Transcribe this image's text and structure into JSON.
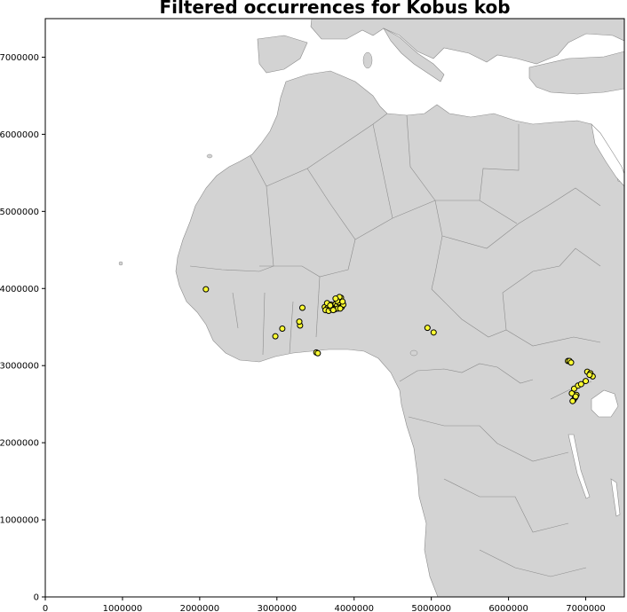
{
  "title": "Filtered occurrences for Kobus kob",
  "chart_data": {
    "type": "scatter",
    "title": "Filtered occurrences for Kobus kob",
    "xlim": [
      0,
      7500000
    ],
    "ylim": [
      0,
      7500000
    ],
    "xticks": [
      0,
      1000000,
      2000000,
      3000000,
      4000000,
      5000000,
      6000000,
      7000000
    ],
    "yticks": [
      0,
      1000000,
      2000000,
      3000000,
      4000000,
      5000000,
      6000000,
      7000000
    ],
    "xtick_labels": [
      "0",
      "1000000",
      "2000000",
      "3000000",
      "4000000",
      "5000000",
      "6000000",
      "7000000"
    ],
    "ytick_labels": [
      "0",
      "1000000",
      "2000000",
      "3000000",
      "4000000",
      "5000000",
      "6000000",
      "7000000"
    ],
    "grid": false,
    "basemap": "Africa and Mediterranean land masses with country borders",
    "colors": {
      "land": "#d3d3d3",
      "sea": "#ffffff",
      "border": "#8c8c8c",
      "point_fill": "#ffff33",
      "point_edge": "#000000"
    },
    "series": [
      {
        "x": [
          2080000,
          3330000,
          3070000,
          2980000,
          3300000,
          3290000,
          3510000,
          3530000,
          3620000,
          3650000,
          3680000,
          3700000,
          3720000,
          3740000,
          3760000,
          3780000,
          3800000,
          3820000,
          3840000,
          3860000,
          3630000,
          3670000,
          3710000,
          3750000,
          3790000,
          3830000,
          3650000,
          3690000,
          3730000,
          3770000,
          3810000,
          3850000,
          3780000,
          3760000,
          3820000,
          4950000,
          5030000,
          6770000,
          6790000,
          6810000,
          7020000,
          7060000,
          7090000,
          7000000,
          7050000,
          6880000,
          6860000,
          6840000,
          6820000,
          6850000,
          6830000,
          6870000,
          6900000,
          6940000
        ],
        "y": [
          3990000,
          3750000,
          3480000,
          3380000,
          3520000,
          3570000,
          3170000,
          3160000,
          3760000,
          3740000,
          3730000,
          3790000,
          3770000,
          3750000,
          3800000,
          3780000,
          3820000,
          3850000,
          3760000,
          3790000,
          3720000,
          3710000,
          3740000,
          3730000,
          3740000,
          3880000,
          3810000,
          3780000,
          3720000,
          3860000,
          3890000,
          3830000,
          3840000,
          3870000,
          3740000,
          3490000,
          3430000,
          3060000,
          3060000,
          3040000,
          2920000,
          2900000,
          2860000,
          2800000,
          2880000,
          2620000,
          2580000,
          2550000,
          2640000,
          2700000,
          2540000,
          2600000,
          2740000,
          2760000
        ]
      }
    ]
  }
}
